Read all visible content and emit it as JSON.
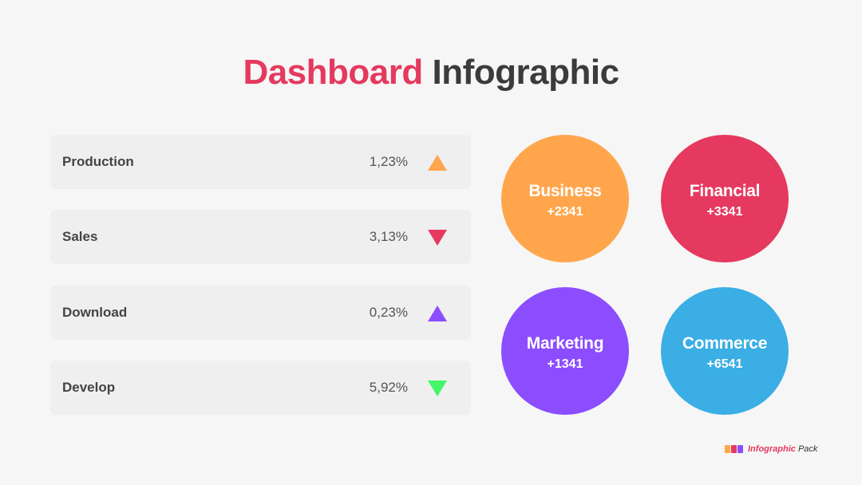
{
  "title": {
    "highlight": "Dashboard",
    "rest": "Infographic"
  },
  "metrics": [
    {
      "label": "Production",
      "value": "1,23%",
      "trend": "up",
      "color": "#ffa64d"
    },
    {
      "label": "Sales",
      "value": "3,13%",
      "trend": "down",
      "color": "#e5395f"
    },
    {
      "label": "Download",
      "value": "0,23%",
      "trend": "up",
      "color": "#8c4dff"
    },
    {
      "label": "Develop",
      "value": "5,92%",
      "trend": "down",
      "color": "#45f56a"
    }
  ],
  "circles": [
    {
      "name": "Business",
      "value": "+2341",
      "color": "#ffa64d"
    },
    {
      "name": "Financial",
      "value": "+3341",
      "color": "#e5395f"
    },
    {
      "name": "Marketing",
      "value": "+1341",
      "color": "#8c4dff"
    },
    {
      "name": "Commerce",
      "value": "+6541",
      "color": "#3aaee5"
    }
  ],
  "brand": {
    "name": "Infographic",
    "suffix": "Pack",
    "block_colors": [
      "#ffa64d",
      "#e5395f",
      "#8c4dff"
    ]
  }
}
